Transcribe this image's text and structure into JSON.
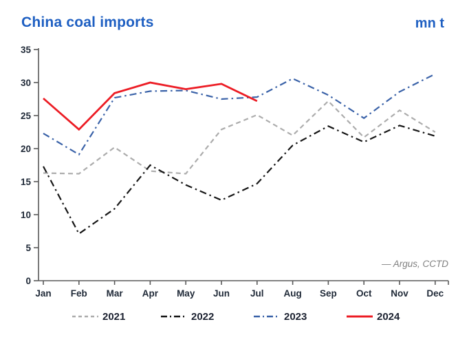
{
  "chart_data": {
    "type": "line",
    "title": "China coal imports",
    "ylabel": "mn t",
    "xlabel": "",
    "source": "— Argus, CCTD",
    "ylim": [
      0,
      35
    ],
    "ytick_step": 5,
    "grid": false,
    "legend_position": "bottom",
    "categories": [
      "Jan",
      "Feb",
      "Mar",
      "Apr",
      "May",
      "Jun",
      "Jul",
      "Aug",
      "Sep",
      "Oct",
      "Nov",
      "Dec"
    ],
    "series": [
      {
        "name": "2021",
        "color": "#ACACAC",
        "style": "dashed",
        "values": [
          16.3,
          16.2,
          20.2,
          16.6,
          16.2,
          22.9,
          25.1,
          22.0,
          27.2,
          21.7,
          25.8,
          22.5
        ]
      },
      {
        "name": "2022",
        "color": "#161616",
        "style": "dashdot",
        "values": [
          17.3,
          7.1,
          10.9,
          17.5,
          14.5,
          12.2,
          14.7,
          20.5,
          23.4,
          21.0,
          23.5,
          21.9
        ]
      },
      {
        "name": "2023",
        "color": "#3A62A8",
        "style": "dashdot",
        "values": [
          22.3,
          19.1,
          27.7,
          28.7,
          28.8,
          27.5,
          27.8,
          30.6,
          28.1,
          24.6,
          28.6,
          31.3
        ]
      },
      {
        "name": "2024",
        "color": "#EC1C24",
        "style": "solid",
        "values": [
          27.6,
          22.9,
          28.4,
          30.0,
          29.0,
          29.8,
          27.2
        ]
      }
    ]
  },
  "colors": {
    "title_blue": "#1E5FC2",
    "axis": "#595959",
    "tick_label": "#202a38",
    "source_gray": "#7f7f7f"
  }
}
